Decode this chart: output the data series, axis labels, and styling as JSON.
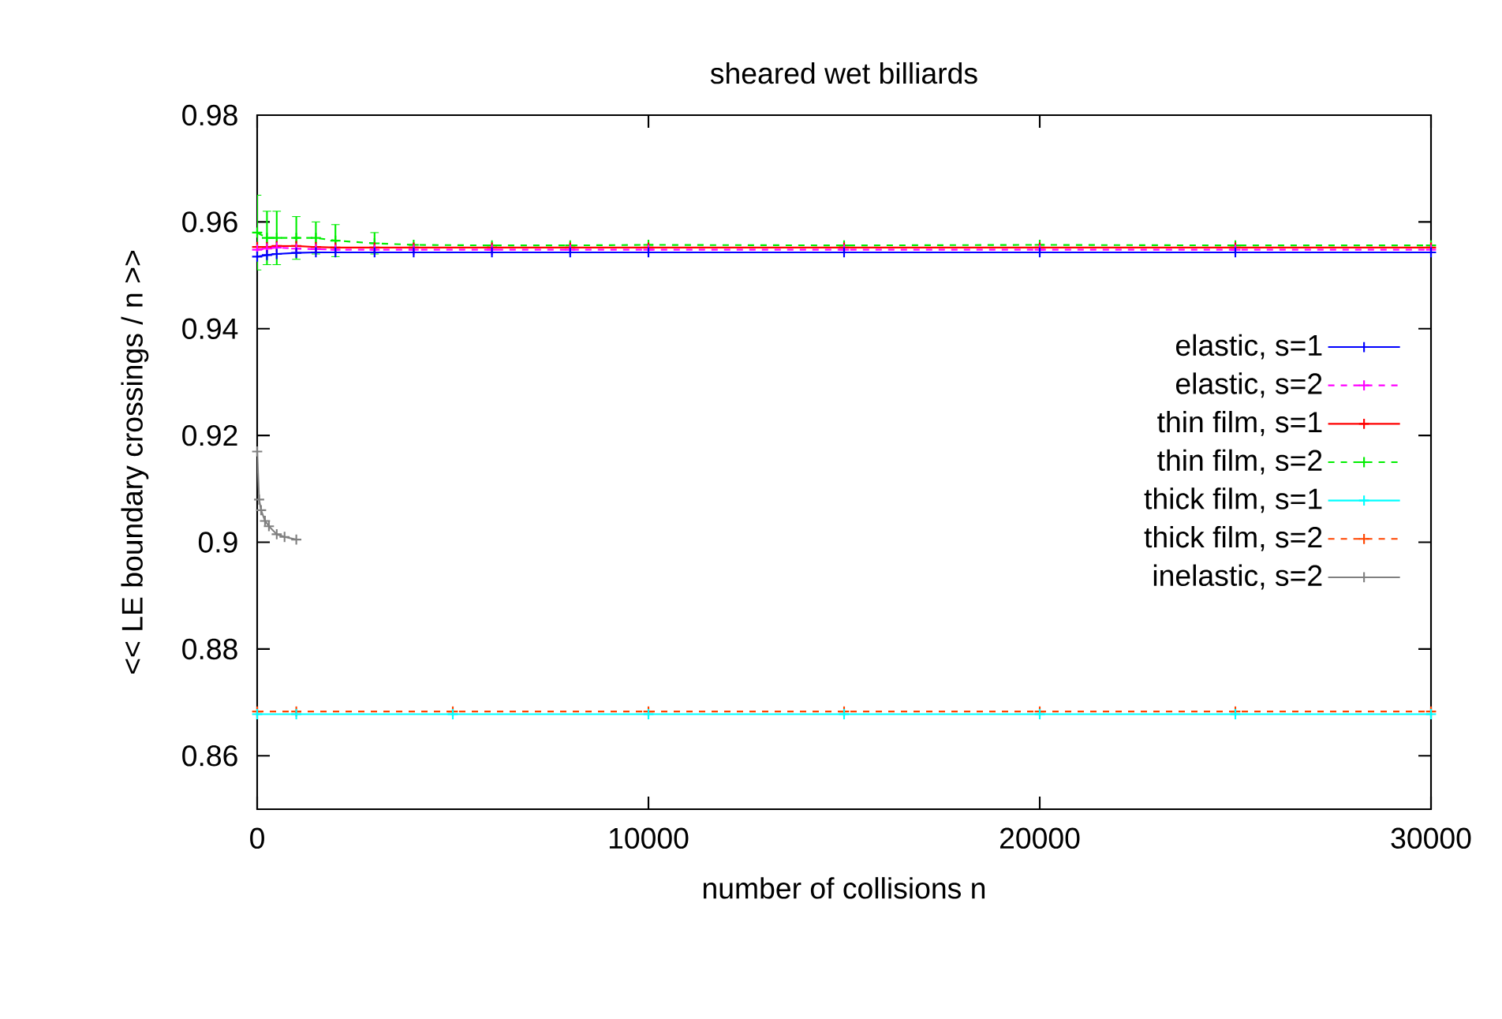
{
  "chart_data": {
    "type": "line",
    "title": "sheared wet billiards",
    "xlabel": "number of collisions n",
    "ylabel": "<< LE boundary crossings / n >>",
    "xlim": [
      0,
      30000
    ],
    "ylim": [
      0.85,
      0.98
    ],
    "xticks": [
      0,
      10000,
      20000,
      30000
    ],
    "yticks": [
      0.86,
      0.88,
      0.9,
      0.92,
      0.94,
      0.96,
      0.98
    ],
    "grid": false,
    "legend": "right",
    "marker": "cross",
    "series": [
      {
        "name": "elastic, s=1",
        "color": "#0000ff",
        "line_style": "solid",
        "x": [
          0,
          250,
          500,
          1000,
          1500,
          2000,
          3000,
          4000,
          6000,
          8000,
          10000,
          15000,
          20000,
          25000,
          30000
        ],
        "values": [
          0.9535,
          0.9538,
          0.954,
          0.9542,
          0.9543,
          0.9543,
          0.9543,
          0.9543,
          0.9543,
          0.9543,
          0.9543,
          0.9543,
          0.9543,
          0.9543,
          0.9543
        ]
      },
      {
        "name": "elastic, s=2",
        "color": "#ff00ff",
        "line_style": "dashed",
        "x": [
          0,
          250,
          500,
          1000,
          1500,
          2000,
          3000,
          4000,
          6000,
          8000,
          10000,
          15000,
          20000,
          25000,
          30000
        ],
        "values": [
          0.9548,
          0.955,
          0.9552,
          0.955,
          0.9549,
          0.9548,
          0.9548,
          0.9548,
          0.9548,
          0.9548,
          0.9548,
          0.9548,
          0.9548,
          0.9548,
          0.9548
        ]
      },
      {
        "name": "thin film, s=1",
        "color": "#ff0000",
        "line_style": "solid",
        "x": [
          0,
          250,
          500,
          1000,
          1500,
          2000,
          3000,
          4000,
          6000,
          8000,
          10000,
          15000,
          20000,
          25000,
          30000
        ],
        "values": [
          0.9553,
          0.9553,
          0.9555,
          0.9555,
          0.9553,
          0.9552,
          0.9552,
          0.9552,
          0.9552,
          0.9552,
          0.9552,
          0.9552,
          0.9552,
          0.9552,
          0.9552
        ]
      },
      {
        "name": "thin film, s=2",
        "color": "#00ee00",
        "line_style": "dashed",
        "x": [
          0,
          250,
          500,
          1000,
          1500,
          2000,
          3000,
          4000,
          6000,
          8000,
          10000,
          15000,
          20000,
          25000,
          30000
        ],
        "values": [
          0.958,
          0.957,
          0.957,
          0.957,
          0.957,
          0.9565,
          0.956,
          0.9557,
          0.9556,
          0.9556,
          0.9557,
          0.9556,
          0.9557,
          0.9556,
          0.9556
        ],
        "errors": [
          0.007,
          0.005,
          0.005,
          0.004,
          0.003,
          0.003,
          0.002,
          null,
          null,
          null,
          null,
          null,
          null,
          null,
          null
        ]
      },
      {
        "name": "thick film, s=1",
        "color": "#00ffff",
        "line_style": "solid",
        "x": [
          0,
          1000,
          5000,
          10000,
          15000,
          20000,
          25000,
          30000
        ],
        "values": [
          0.8678,
          0.8678,
          0.8678,
          0.8678,
          0.8678,
          0.8678,
          0.8678,
          0.8678
        ]
      },
      {
        "name": "thick film, s=2",
        "color": "#ff4500",
        "line_style": "dashed",
        "x": [
          0,
          1000,
          5000,
          10000,
          15000,
          20000,
          25000,
          30000
        ],
        "values": [
          0.8683,
          0.8683,
          0.8683,
          0.8683,
          0.8683,
          0.8683,
          0.8683,
          0.8683
        ]
      },
      {
        "name": "inelastic, s=2",
        "color": "#808080",
        "line_style": "solid",
        "x": [
          0,
          50,
          100,
          200,
          300,
          500,
          700,
          1000
        ],
        "values": [
          0.917,
          0.908,
          0.906,
          0.904,
          0.903,
          0.9015,
          0.901,
          0.9005
        ]
      }
    ]
  }
}
